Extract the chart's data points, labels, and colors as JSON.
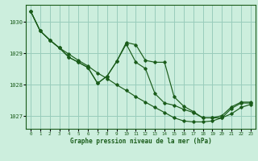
{
  "title": "Graphe pression niveau de la mer (hPa)",
  "bg_color": "#cceedd",
  "grid_color": "#99ccbb",
  "line_color": "#1a5c1a",
  "x_ticks": [
    0,
    1,
    2,
    3,
    4,
    5,
    6,
    7,
    8,
    9,
    10,
    11,
    12,
    13,
    14,
    15,
    16,
    17,
    18,
    19,
    20,
    21,
    22,
    23
  ],
  "y_ticks": [
    1027,
    1028,
    1029,
    1030
  ],
  "ylim": [
    1026.6,
    1030.55
  ],
  "xlim": [
    -0.5,
    23.5
  ],
  "hours": [
    0,
    1,
    2,
    3,
    4,
    5,
    6,
    7,
    8,
    9,
    10,
    11,
    12,
    13,
    14,
    15,
    16,
    17,
    18,
    19,
    20,
    21,
    22,
    23
  ],
  "series1": [
    1030.35,
    1029.72,
    1029.43,
    1029.18,
    1028.98,
    1028.78,
    1028.6,
    1028.38,
    1028.2,
    1028.0,
    1027.82,
    1027.62,
    1027.45,
    1027.28,
    1027.12,
    1026.95,
    1026.85,
    1026.82,
    1026.82,
    1026.85,
    1026.95,
    1027.08,
    1027.28,
    1027.38
  ],
  "series2": [
    1030.35,
    1029.72,
    1029.43,
    1029.18,
    1028.88,
    1028.72,
    1028.55,
    1028.05,
    1028.28,
    1028.75,
    1029.3,
    1028.72,
    1028.52,
    1027.72,
    1027.42,
    1027.35,
    1027.22,
    1027.12,
    1026.95,
    1026.95,
    1026.95,
    1027.25,
    1027.42,
    1027.42
  ],
  "series3": [
    1030.35,
    1029.72,
    1029.43,
    1029.18,
    1028.88,
    1028.72,
    1028.55,
    1028.05,
    1028.28,
    1028.75,
    1029.35,
    1029.28,
    1028.78,
    1028.72,
    1028.72,
    1027.62,
    1027.32,
    1027.15,
    1026.95,
    1026.95,
    1027.02,
    1027.3,
    1027.45,
    1027.45
  ]
}
